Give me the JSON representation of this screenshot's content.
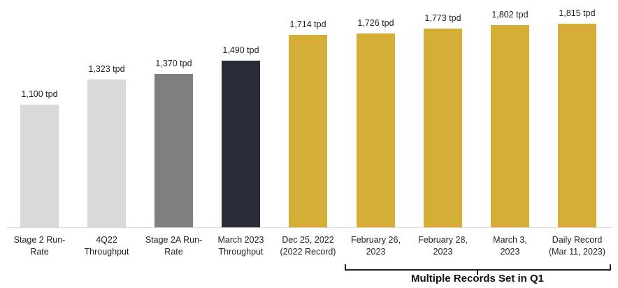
{
  "chart_data": {
    "type": "bar",
    "title": "",
    "xlabel": "",
    "ylabel": "",
    "unit": "tpd",
    "ylim": [
      0,
      1850
    ],
    "grid": false,
    "legend": null,
    "categories": [
      "Stage 2 Run-Rate",
      "4Q22\nThroughput",
      "Stage 2A Run-\nRate",
      "March 2023\nThroughput",
      "Dec 25, 2022\n(2022 Record)",
      "February 26,\n2023",
      "February 28,\n2023",
      "March 3,\n2023",
      "Daily Record\n(Mar 11, 2023)"
    ],
    "values": [
      1100,
      1323,
      1370,
      1490,
      1714,
      1726,
      1773,
      1802,
      1815
    ],
    "value_labels": [
      "1,100 tpd",
      "1,323 tpd",
      "1,370 tpd",
      "1,490 tpd",
      "1,714 tpd",
      "1,726 tpd",
      "1,773 tpd",
      "1,802 tpd",
      "1,815 tpd"
    ],
    "colors": [
      "#d9d9d9",
      "#d9d9d9",
      "#7f7f7f",
      "#282c36",
      "#d4ae36",
      "#d4ae36",
      "#d4ae36",
      "#d4ae36",
      "#d4ae36"
    ],
    "annotations": [
      {
        "text": "Multiple Records Set in Q1",
        "type": "bracket",
        "spans_categories": [
          5,
          8
        ]
      }
    ]
  }
}
